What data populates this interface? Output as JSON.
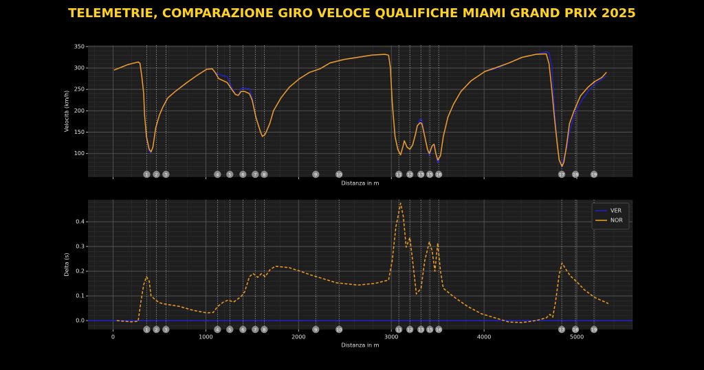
{
  "title": "TELEMETRIE, COMPARAZIONE GIRO VELOCE QUALIFICHE MIAMI GRAND PRIX 2025",
  "corners": [
    {
      "label": "1",
      "distance": 363
    },
    {
      "label": "2",
      "distance": 467
    },
    {
      "label": "3",
      "distance": 570
    },
    {
      "label": "4",
      "distance": 1126
    },
    {
      "label": "5",
      "distance": 1259
    },
    {
      "label": "6",
      "distance": 1400
    },
    {
      "label": "7",
      "distance": 1533
    },
    {
      "label": "8",
      "distance": 1630
    },
    {
      "label": "9",
      "distance": 2185
    },
    {
      "label": "10",
      "distance": 2437
    },
    {
      "label": "11",
      "distance": 3081
    },
    {
      "label": "12",
      "distance": 3200
    },
    {
      "label": "13",
      "distance": 3319
    },
    {
      "label": "15",
      "distance": 3415
    },
    {
      "label": "16",
      "distance": 3511
    },
    {
      "label": "17",
      "distance": 4837
    },
    {
      "label": "18",
      "distance": 4985
    },
    {
      "label": "19",
      "distance": 5185
    }
  ],
  "chart_data": [
    {
      "type": "line",
      "xlabel": "Distanza in m",
      "ylabel": "Velocità (km/h)",
      "xlim": [
        -270,
        5600
      ],
      "xticks": [
        0,
        1000,
        2000,
        3000,
        4000,
        5000
      ],
      "xtick_labels": false,
      "ylim": [
        45,
        353
      ],
      "yticks": [
        100,
        150,
        200,
        250,
        300,
        350
      ],
      "grid": true,
      "minor_grid": true,
      "legend": false,
      "corner_markers": true,
      "series": [
        {
          "name": "VER",
          "color": "#2020d0",
          "x": [
            10,
            160,
            270,
            290,
            310,
            330,
            340,
            360,
            390,
            410,
            430,
            460,
            500,
            540,
            590,
            670,
            790,
            900,
            1010,
            1070,
            1100,
            1140,
            1190,
            1230,
            1280,
            1320,
            1350,
            1380,
            1420,
            1470,
            1500,
            1540,
            1590,
            1610,
            1640,
            1690,
            1730,
            1810,
            1900,
            2010,
            2120,
            2230,
            2340,
            2490,
            2640,
            2790,
            2930,
            2970,
            2990,
            3010,
            3040,
            3070,
            3100,
            3130,
            3140,
            3170,
            3200,
            3230,
            3260,
            3280,
            3310,
            3330,
            3360,
            3390,
            3410,
            3440,
            3460,
            3480,
            3500,
            3530,
            3560,
            3610,
            3670,
            3750,
            3860,
            4010,
            4120,
            4270,
            4410,
            4560,
            4670,
            4700,
            4730,
            4760,
            4790,
            4810,
            4840,
            4860,
            4890,
            4920,
            4970,
            5040,
            5120,
            5190,
            5270,
            5320
          ],
          "values": [
            295,
            308,
            314,
            311,
            280,
            240,
            190,
            140,
            105,
            102,
            115,
            160,
            190,
            210,
            230,
            245,
            265,
            282,
            297,
            298,
            290,
            285,
            282,
            280,
            255,
            238,
            236,
            252,
            253,
            252,
            230,
            185,
            150,
            140,
            145,
            170,
            200,
            230,
            255,
            275,
            290,
            298,
            312,
            320,
            325,
            330,
            332,
            330,
            300,
            220,
            140,
            110,
            97,
            120,
            130,
            115,
            110,
            120,
            145,
            165,
            180,
            178,
            140,
            110,
            95,
            118,
            122,
            100,
            78,
            95,
            140,
            185,
            215,
            245,
            270,
            292,
            298,
            312,
            325,
            332,
            338,
            335,
            305,
            200,
            120,
            85,
            68,
            90,
            110,
            150,
            190,
            220,
            245,
            262,
            274,
            282
          ]
        },
        {
          "name": "NOR",
          "color": "#f5a01e",
          "x": [
            10,
            160,
            270,
            290,
            310,
            330,
            340,
            360,
            390,
            410,
            430,
            460,
            500,
            540,
            590,
            670,
            790,
            900,
            1010,
            1070,
            1100,
            1140,
            1190,
            1230,
            1280,
            1320,
            1350,
            1380,
            1420,
            1470,
            1500,
            1540,
            1590,
            1610,
            1640,
            1690,
            1730,
            1810,
            1900,
            2010,
            2120,
            2230,
            2340,
            2490,
            2640,
            2790,
            2930,
            2970,
            2990,
            3010,
            3040,
            3070,
            3100,
            3130,
            3140,
            3170,
            3200,
            3230,
            3260,
            3280,
            3310,
            3330,
            3360,
            3390,
            3410,
            3440,
            3460,
            3480,
            3500,
            3530,
            3560,
            3610,
            3670,
            3750,
            3860,
            4010,
            4120,
            4270,
            4410,
            4560,
            4670,
            4700,
            4730,
            4760,
            4790,
            4810,
            4840,
            4860,
            4890,
            4920,
            4970,
            5040,
            5120,
            5190,
            5270,
            5320
          ],
          "values": [
            295,
            308,
            314,
            311,
            280,
            240,
            190,
            140,
            110,
            104,
            115,
            160,
            190,
            210,
            230,
            245,
            265,
            282,
            297,
            298,
            290,
            275,
            270,
            266,
            250,
            238,
            236,
            245,
            245,
            240,
            225,
            185,
            150,
            140,
            145,
            170,
            200,
            230,
            255,
            275,
            290,
            298,
            312,
            320,
            325,
            330,
            332,
            330,
            300,
            220,
            140,
            110,
            97,
            120,
            130,
            115,
            110,
            120,
            145,
            165,
            172,
            170,
            140,
            110,
            100,
            118,
            122,
            100,
            85,
            95,
            140,
            185,
            215,
            245,
            270,
            292,
            300,
            312,
            325,
            332,
            333,
            310,
            250,
            180,
            120,
            85,
            70,
            80,
            120,
            170,
            200,
            235,
            255,
            268,
            278,
            290
          ]
        }
      ]
    },
    {
      "type": "line",
      "xlabel": "Distanza in m",
      "ylabel": "Delta (s)",
      "xlim": [
        -270,
        5600
      ],
      "xticks": [
        0,
        1000,
        2000,
        3000,
        4000,
        5000
      ],
      "ylim": [
        -0.036,
        0.489
      ],
      "yticks": [
        {
          "value": 0,
          "label": "0.0"
        },
        {
          "value": 0.1,
          "label": "0.1"
        },
        {
          "value": 0.2,
          "label": "0.2"
        },
        {
          "value": 0.3,
          "label": "0.3"
        },
        {
          "value": 0.4,
          "label": "0.4"
        }
      ],
      "grid": true,
      "minor_grid": true,
      "legend": "upper right",
      "corner_markers": true,
      "series": [
        {
          "name": "VER",
          "color": "#2020d0",
          "x": [
            -270,
            5600
          ],
          "values": [
            0,
            0
          ]
        },
        {
          "name": "NOR",
          "color": "#f5a01e",
          "dashed": true,
          "x": [
            40,
            190,
            270,
            300,
            330,
            360,
            390,
            410,
            460,
            500,
            560,
            710,
            860,
            1010,
            1080,
            1130,
            1190,
            1240,
            1300,
            1380,
            1420,
            1470,
            1510,
            1560,
            1600,
            1640,
            1690,
            1750,
            1900,
            2040,
            2120,
            2270,
            2410,
            2640,
            2820,
            2970,
            3010,
            3050,
            3100,
            3130,
            3160,
            3200,
            3230,
            3270,
            3320,
            3360,
            3410,
            3440,
            3470,
            3500,
            3530,
            3560,
            3670,
            3820,
            3970,
            4120,
            4270,
            4410,
            4560,
            4670,
            4710,
            4740,
            4770,
            4810,
            4840,
            4890,
            4930,
            5010,
            5080,
            5190,
            5340
          ],
          "values": [
            0,
            -0.005,
            -0.003,
            0.075,
            0.145,
            0.178,
            0.16,
            0.1,
            0.083,
            0.072,
            0.067,
            0.058,
            0.042,
            0.031,
            0.033,
            0.058,
            0.075,
            0.083,
            0.075,
            0.097,
            0.117,
            0.178,
            0.19,
            0.175,
            0.19,
            0.178,
            0.205,
            0.22,
            0.214,
            0.197,
            0.186,
            0.169,
            0.153,
            0.144,
            0.15,
            0.164,
            0.242,
            0.38,
            0.475,
            0.42,
            0.297,
            0.336,
            0.242,
            0.108,
            0.131,
            0.242,
            0.319,
            0.283,
            0.2,
            0.314,
            0.2,
            0.131,
            0.097,
            0.058,
            0.028,
            0.011,
            -0.006,
            -0.008,
            0,
            0.011,
            0.025,
            0.014,
            0.075,
            0.186,
            0.233,
            0.203,
            0.181,
            0.153,
            0.125,
            0.094,
            0.069
          ]
        }
      ]
    }
  ]
}
